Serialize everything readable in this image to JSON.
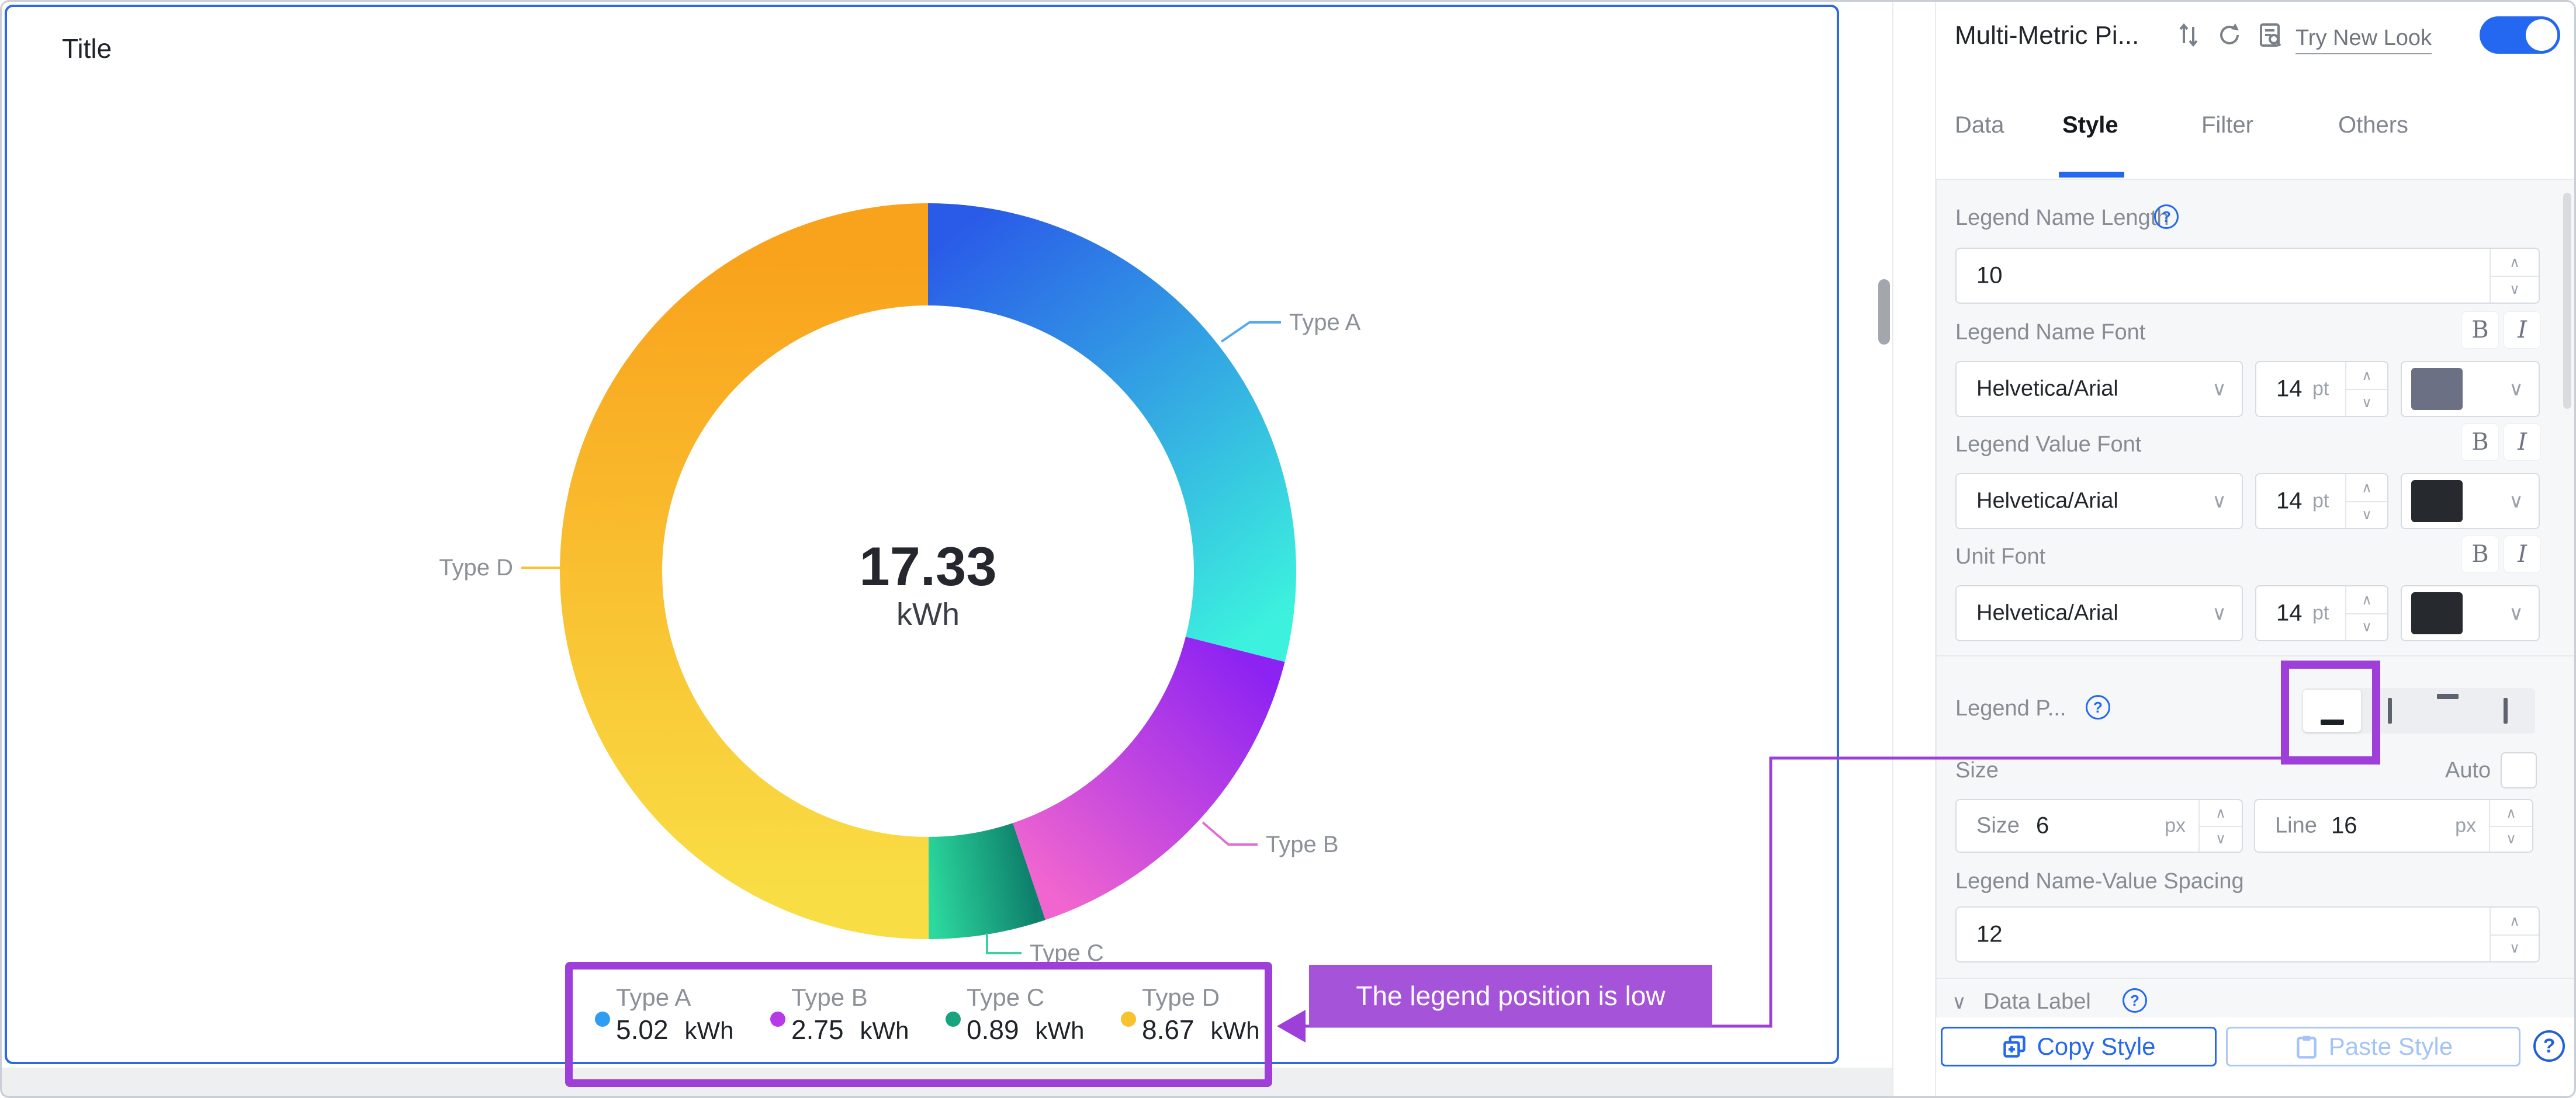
{
  "chart_panel": {
    "title": "Title"
  },
  "chart_data": {
    "type": "pie",
    "variant": "donut",
    "title": "Title",
    "categories": [
      "Type A",
      "Type B",
      "Type C",
      "Type D"
    ],
    "values": [
      5.02,
      2.75,
      0.89,
      8.67
    ],
    "unit": "kWh",
    "center_value": "17.33",
    "center_unit": "kWh",
    "legend_position": "bottom",
    "slice_gradients": [
      [
        "#2a5be8",
        "#3cf1de"
      ],
      [
        "#8d23f2",
        "#f065cf"
      ],
      [
        "#0e806c",
        "#2cd89d"
      ],
      [
        "#f9dd45",
        "#f9a21c"
      ]
    ],
    "legend_dot_colors": [
      "#2f9df2",
      "#b73ae6",
      "#16a37e",
      "#f6c22e"
    ],
    "callout_line_colors": [
      "#56a8f2",
      "#e06ed8",
      "#3ecfa4",
      "#f6c237"
    ]
  },
  "annotations": {
    "note_text": "The legend position is low",
    "highlight_color": "#9d3fd8",
    "note_fill": "#a553d9"
  },
  "sidebar": {
    "title": "Multi-Metric Pi...",
    "try_new_look": "Try New Look",
    "toggle_on": true,
    "tabs": [
      {
        "label": "Data",
        "active": false
      },
      {
        "label": "Style",
        "active": true
      },
      {
        "label": "Filter",
        "active": false
      },
      {
        "label": "Others",
        "active": false
      }
    ],
    "style": {
      "legend_name_length_label": "Legend Name Length",
      "legend_name_length_value": "10",
      "bold_label": "B",
      "italic_label": "I",
      "fonts": [
        {
          "label": "Legend Name Font",
          "family": "Helvetica/Arial",
          "size": "14",
          "size_unit": "pt",
          "color": "#6b7084"
        },
        {
          "label": "Legend Value Font",
          "family": "Helvetica/Arial",
          "size": "14",
          "size_unit": "pt",
          "color": "#26292e"
        },
        {
          "label": "Unit Font",
          "family": "Helvetica/Arial",
          "size": "14",
          "size_unit": "pt",
          "color": "#26292e"
        }
      ],
      "legend_position_label": "Legend P...",
      "legend_position_options": [
        "bottom",
        "left",
        "top",
        "right"
      ],
      "legend_position_selected": "bottom",
      "size_label": "Size",
      "auto_label": "Auto",
      "auto_checked": false,
      "size_field_label": "Size",
      "size_value": "6",
      "size_unit": "px",
      "line_field_label": "Line",
      "line_value": "16",
      "line_unit": "px",
      "spacing_label": "Legend Name-Value Spacing",
      "spacing_value": "12",
      "data_label_label": "Data Label"
    },
    "footer": {
      "copy_label": "Copy Style",
      "paste_label": "Paste Style"
    }
  }
}
